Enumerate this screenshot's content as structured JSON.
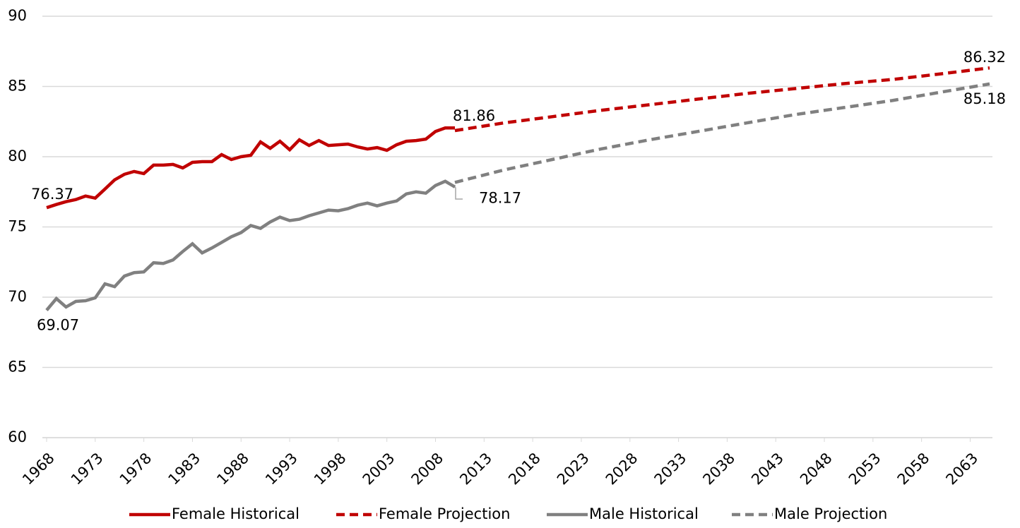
{
  "chart_data": {
    "type": "line",
    "ylim": [
      60,
      90
    ],
    "yticks": [
      60,
      65,
      70,
      75,
      80,
      85,
      90
    ],
    "grid": true,
    "xlim": [
      1968,
      2065
    ],
    "xticks": [
      1968,
      1973,
      1978,
      1983,
      1988,
      1993,
      1998,
      2003,
      2008,
      2013,
      2018,
      2023,
      2028,
      2033,
      2038,
      2043,
      2048,
      2053,
      2058,
      2063
    ],
    "legend": "bottom",
    "series": [
      {
        "name": "Female Historical",
        "color": "#c00000",
        "dashed": false,
        "x": [
          1968,
          1969,
          1970,
          1971,
          1972,
          1973,
          1974,
          1975,
          1976,
          1977,
          1978,
          1979,
          1980,
          1981,
          1982,
          1983,
          1984,
          1985,
          1986,
          1987,
          1988,
          1989,
          1990,
          1991,
          1992,
          1993,
          1994,
          1995,
          1996,
          1997,
          1998,
          1999,
          2000,
          2001,
          2002,
          2003,
          2004,
          2005,
          2006,
          2007,
          2008,
          2009,
          2010
        ],
        "values": [
          76.37,
          76.6,
          76.8,
          76.95,
          77.2,
          77.05,
          77.7,
          78.35,
          78.75,
          78.95,
          78.8,
          79.4,
          79.4,
          79.45,
          79.2,
          79.6,
          79.65,
          79.65,
          80.15,
          79.8,
          80.0,
          80.1,
          81.05,
          80.6,
          81.1,
          80.5,
          81.2,
          80.8,
          81.15,
          80.8,
          80.85,
          80.9,
          80.7,
          80.55,
          80.65,
          80.45,
          80.85,
          81.1,
          81.15,
          81.25,
          81.8,
          82.05,
          82.05
        ]
      },
      {
        "name": "Female Projection",
        "color": "#c00000",
        "dashed": true,
        "x": [
          2010,
          2015,
          2020,
          2025,
          2030,
          2035,
          2040,
          2045,
          2050,
          2055,
          2060,
          2065
        ],
        "values": [
          81.86,
          82.4,
          82.85,
          83.3,
          83.7,
          84.1,
          84.5,
          84.85,
          85.2,
          85.5,
          85.9,
          86.32
        ]
      },
      {
        "name": "Male Historical",
        "color": "#808080",
        "dashed": false,
        "x": [
          1968,
          1969,
          1970,
          1971,
          1972,
          1973,
          1974,
          1975,
          1976,
          1977,
          1978,
          1979,
          1980,
          1981,
          1982,
          1983,
          1984,
          1985,
          1986,
          1987,
          1988,
          1989,
          1990,
          1991,
          1992,
          1993,
          1994,
          1995,
          1996,
          1997,
          1998,
          1999,
          2000,
          2001,
          2002,
          2003,
          2004,
          2005,
          2006,
          2007,
          2008,
          2009,
          2010
        ],
        "values": [
          69.07,
          69.9,
          69.3,
          69.7,
          69.75,
          69.95,
          70.95,
          70.75,
          71.5,
          71.75,
          71.8,
          72.45,
          72.4,
          72.65,
          73.25,
          73.8,
          73.15,
          73.5,
          73.9,
          74.3,
          74.6,
          75.1,
          74.9,
          75.35,
          75.7,
          75.45,
          75.55,
          75.8,
          76.0,
          76.2,
          76.15,
          76.3,
          76.55,
          76.7,
          76.5,
          76.7,
          76.85,
          77.35,
          77.5,
          77.4,
          77.95,
          78.25,
          77.85
        ]
      },
      {
        "name": "Male Projection",
        "color": "#808080",
        "dashed": true,
        "x": [
          2010,
          2015,
          2020,
          2025,
          2030,
          2035,
          2040,
          2045,
          2050,
          2055,
          2060,
          2065
        ],
        "values": [
          78.17,
          79.05,
          79.8,
          80.55,
          81.2,
          81.8,
          82.4,
          83.0,
          83.5,
          84.0,
          84.6,
          85.18
        ]
      }
    ]
  }
}
